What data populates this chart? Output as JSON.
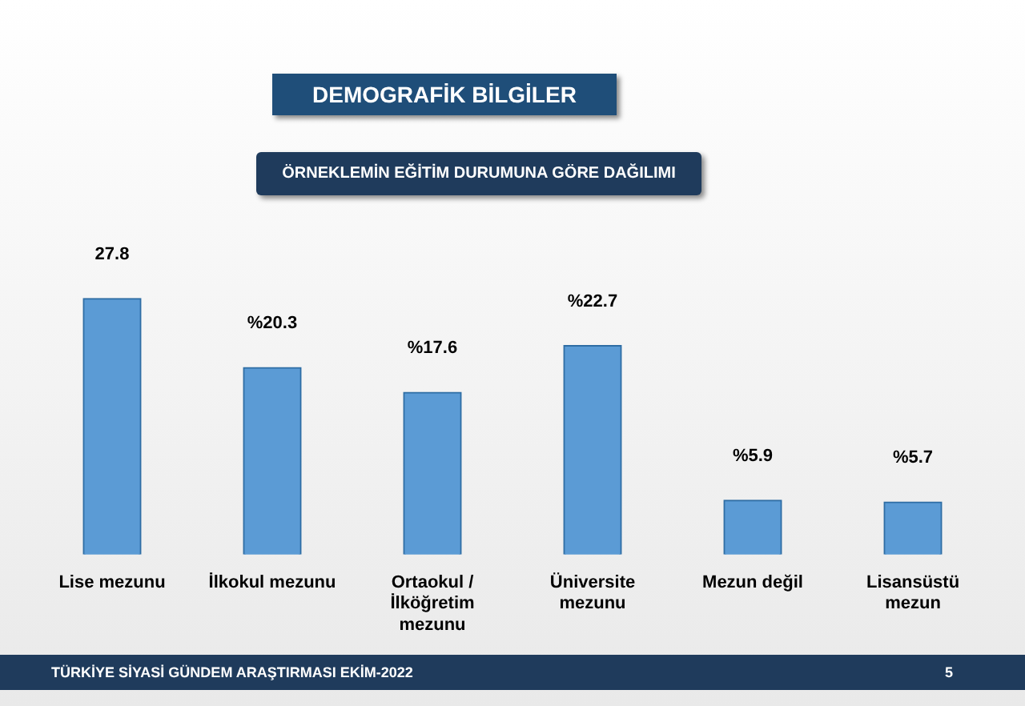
{
  "chart_data": {
    "type": "bar",
    "title": "DEMOGRAFİK BİLGİLER",
    "subtitle": "ÖRNEKLEMİN EĞİTİM DURUMUNA GÖRE DAĞILIMI",
    "categories": [
      "Lise mezunu",
      "İlkokul mezunu",
      "Ortaokul / İlköğretim mezunu",
      "Üniversite mezunu",
      "Mezun değil",
      "Lisansüstü mezun"
    ],
    "values": [
      27.8,
      20.3,
      17.6,
      22.7,
      5.9,
      5.7
    ],
    "value_labels": [
      "27.8",
      "%20.3",
      "%17.6",
      "%22.7",
      "%5.9",
      "%5.7"
    ],
    "color": "#5b9bd5",
    "annotations": [
      "TÜRKİYE SİYASİ GÜNDEM ARAŞTIRMASI EKİM-2022",
      "5"
    ]
  }
}
